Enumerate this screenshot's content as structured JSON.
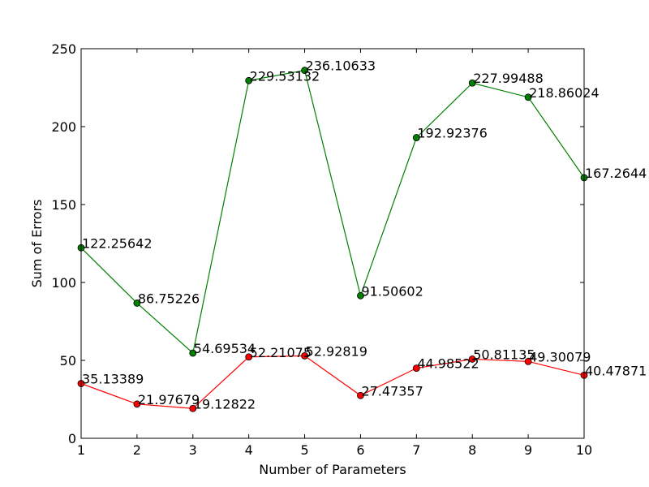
{
  "chart_data": {
    "type": "line",
    "title": "",
    "xlabel": "Number of Parameters",
    "ylabel": "Sum of Errors",
    "xlim": [
      1,
      10
    ],
    "ylim": [
      0,
      250
    ],
    "xticks": [
      1,
      2,
      3,
      4,
      5,
      6,
      7,
      8,
      9,
      10
    ],
    "yticks": [
      0,
      50,
      100,
      150,
      200,
      250
    ],
    "x": [
      1,
      2,
      3,
      4,
      5,
      6,
      7,
      8,
      9,
      10
    ],
    "grid": false,
    "series": [
      {
        "color": "#008000",
        "values": [
          122.25642,
          86.75226,
          54.69534,
          229.53132,
          236.10633,
          91.50602,
          192.92376,
          227.99488,
          218.86024,
          167.2644
        ],
        "labels": [
          "122.25642",
          "86.75226",
          "54.69534",
          "229.53132",
          "236.10633",
          "91.50602",
          "192.92376",
          "227.99488",
          "218.86024",
          "167.2644"
        ]
      },
      {
        "color": "#ff0000",
        "values": [
          35.13389,
          21.97679,
          19.12822,
          52.21075,
          52.92819,
          27.47357,
          44.98522,
          50.81135,
          49.30079,
          40.47871
        ],
        "labels": [
          "35.13389",
          "21.97679",
          "19.12822",
          "52.21075",
          "52.92819",
          "27.47357",
          "44.98522",
          "50.81135",
          "49.30079",
          "40.47871"
        ]
      }
    ]
  }
}
